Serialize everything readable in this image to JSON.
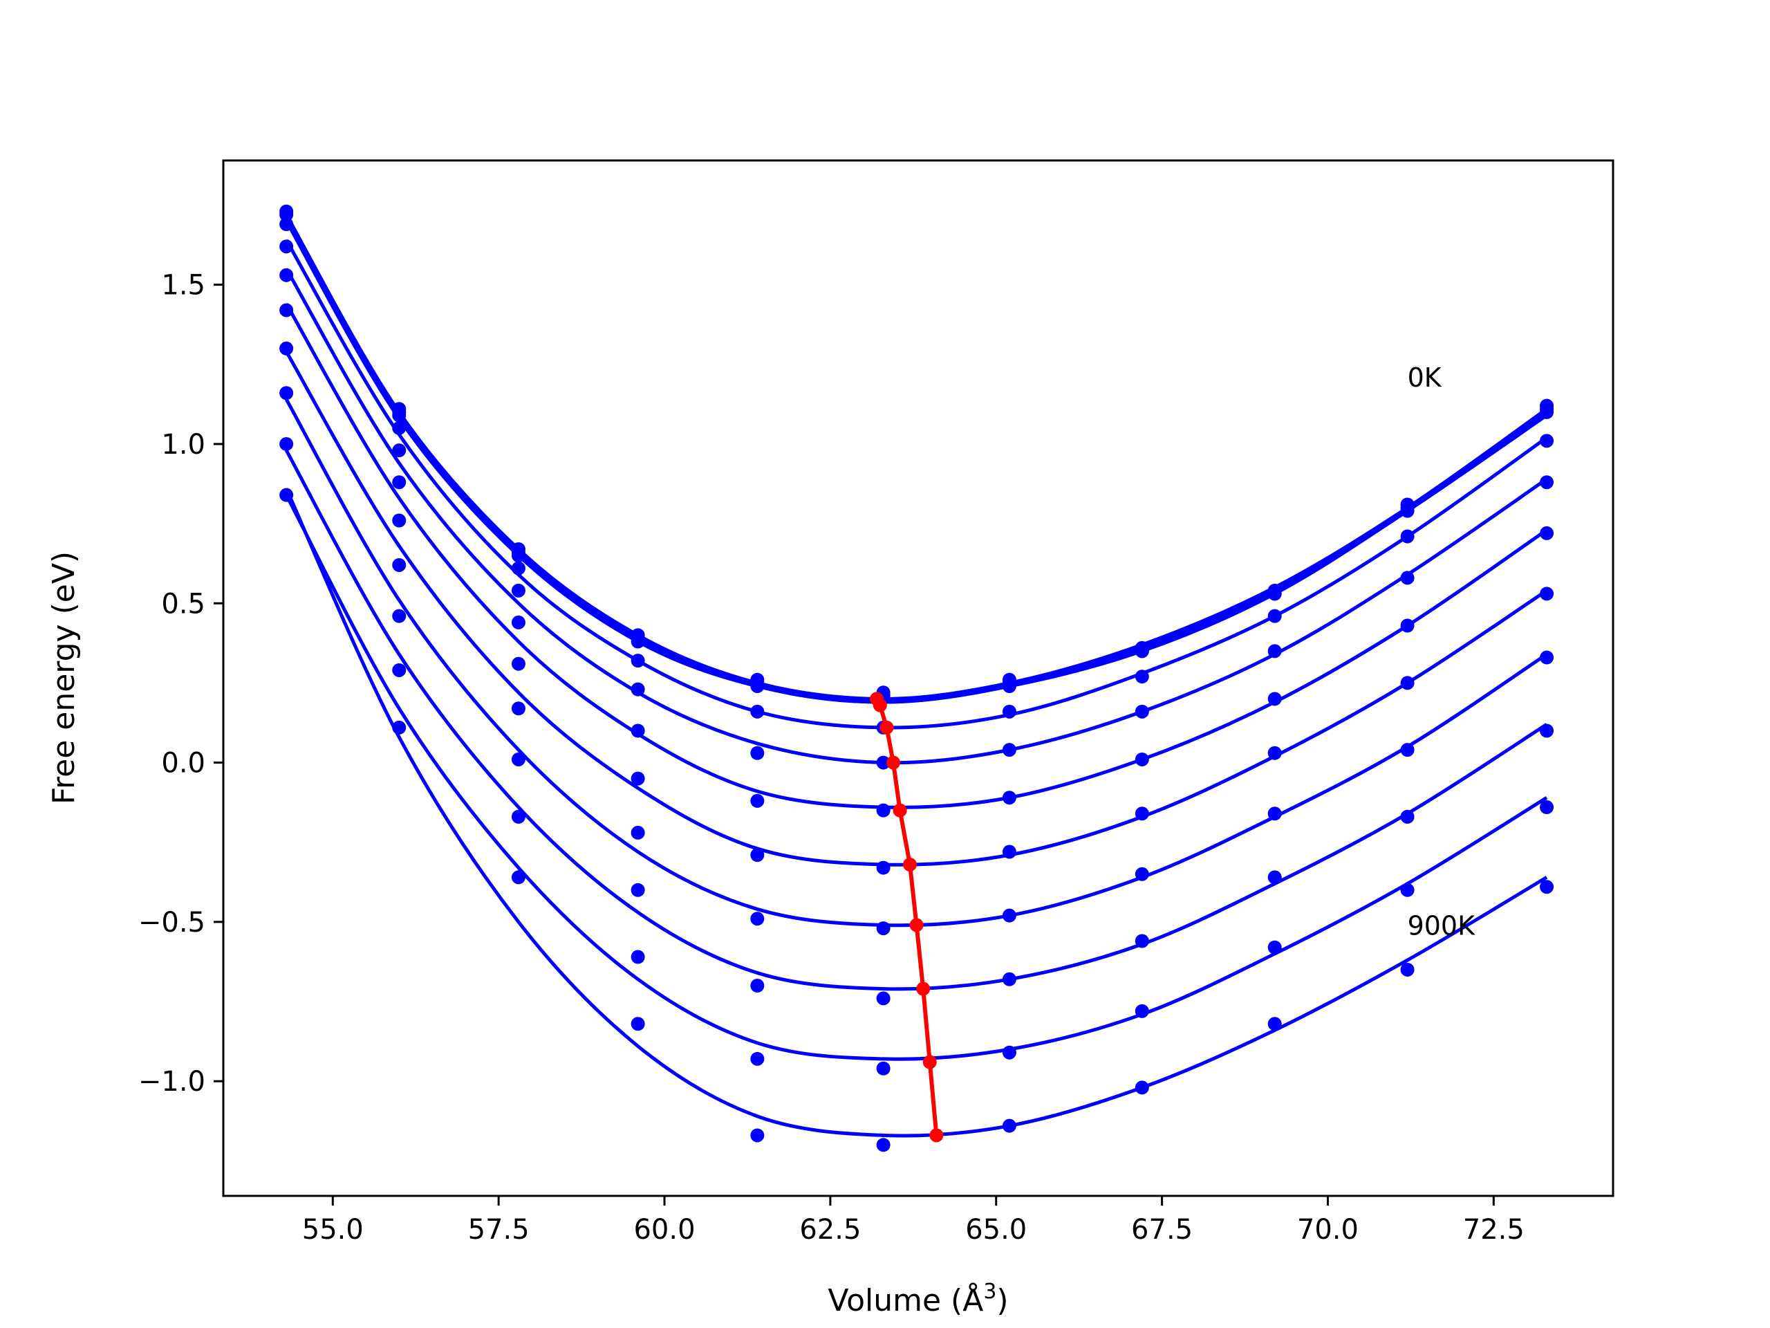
{
  "chart_data": {
    "type": "line",
    "title": "",
    "xlabel": "Volume (Å",
    "xlabel_sup": "3",
    "xlabel_close": ")",
    "ylabel": "Free energy (eV)",
    "xlim": [
      53.35,
      74.3
    ],
    "ylim": [
      -1.36,
      1.89
    ],
    "xticks": [
      55.0,
      57.5,
      60.0,
      62.5,
      65.0,
      67.5,
      70.0,
      72.5
    ],
    "xtick_labels": [
      "55.0",
      "57.5",
      "60.0",
      "62.5",
      "65.0",
      "67.5",
      "70.0",
      "72.5"
    ],
    "yticks": [
      -1.0,
      -0.5,
      0.0,
      0.5,
      1.0,
      1.5
    ],
    "ytick_labels": [
      "−1.0",
      "−0.5",
      "0.0",
      "0.5",
      "1.0",
      "1.5"
    ],
    "grid": false,
    "annotations": [
      {
        "text": "0K",
        "x": 71.2,
        "y": 1.18
      },
      {
        "text": "900K",
        "x": 71.2,
        "y": -0.54
      }
    ],
    "colors": {
      "curves": "#0000ff",
      "min_path": "#ff0000",
      "axes": "#000000"
    },
    "volumes": [
      54.3,
      56.0,
      57.8,
      59.6,
      61.4,
      63.3,
      65.2,
      67.2,
      69.2,
      71.2,
      73.3
    ],
    "series": [
      {
        "x": [
          54.3,
          56.0,
          57.8,
          59.6,
          61.4,
          63.3,
          65.2,
          67.2,
          69.2,
          71.2,
          73.3
        ],
        "y": [
          1.73,
          1.11,
          0.67,
          0.4,
          0.26,
          0.22,
          0.26,
          0.36,
          0.54,
          0.81,
          1.12
        ],
        "fit": {
          "x": [
            54.3,
            56.0,
            57.8,
            59.6,
            61.4,
            63.3,
            65.2,
            67.2,
            69.2,
            71.2,
            73.3
          ],
          "y": [
            1.72,
            1.1,
            0.67,
            0.4,
            0.25,
            0.2,
            0.25,
            0.37,
            0.55,
            0.8,
            1.11
          ]
        }
      },
      {
        "x": [
          54.3,
          56.0,
          57.8,
          59.6,
          61.4,
          63.3,
          65.2,
          67.2,
          69.2,
          71.2,
          73.3
        ],
        "y": [
          1.72,
          1.1,
          0.66,
          0.39,
          0.25,
          0.21,
          0.25,
          0.35,
          0.53,
          0.8,
          1.11
        ],
        "fit": {
          "x": [
            54.3,
            56.0,
            57.8,
            59.6,
            61.4,
            63.3,
            65.2,
            67.2,
            69.2,
            71.2,
            73.3
          ],
          "y": [
            1.71,
            1.09,
            0.66,
            0.39,
            0.24,
            0.19,
            0.24,
            0.36,
            0.54,
            0.79,
            1.1
          ]
        }
      },
      {
        "x": [
          54.3,
          56.0,
          57.8,
          59.6,
          61.4,
          63.3,
          65.2,
          67.2,
          69.2,
          71.2,
          73.3
        ],
        "y": [
          1.69,
          1.09,
          0.65,
          0.38,
          0.24,
          0.21,
          0.24,
          0.35,
          0.53,
          0.79,
          1.1
        ],
        "fit": {
          "x": [
            54.3,
            56.0,
            57.8,
            59.6,
            61.4,
            63.3,
            65.2,
            67.2,
            69.2,
            71.2,
            73.3
          ],
          "y": [
            1.7,
            1.08,
            0.65,
            0.38,
            0.24,
            0.19,
            0.24,
            0.35,
            0.53,
            0.79,
            1.09
          ]
        }
      },
      {
        "x": [
          54.3,
          56.0,
          57.8,
          59.6,
          61.4,
          63.3,
          65.2,
          67.2,
          69.2,
          71.2,
          73.3
        ],
        "y": [
          1.62,
          1.05,
          0.61,
          0.32,
          0.16,
          0.11,
          0.16,
          0.27,
          0.46,
          0.71,
          1.01
        ],
        "fit": {
          "x": [
            54.3,
            56.0,
            57.8,
            59.6,
            61.4,
            63.3,
            65.2,
            67.2,
            69.2,
            71.2,
            73.3
          ],
          "y": [
            1.64,
            1.03,
            0.59,
            0.32,
            0.16,
            0.11,
            0.15,
            0.28,
            0.46,
            0.71,
            1.02
          ]
        }
      },
      {
        "x": [
          54.3,
          56.0,
          57.8,
          59.6,
          61.4,
          63.3,
          65.2,
          67.2,
          69.2,
          71.2,
          73.3
        ],
        "y": [
          1.53,
          0.98,
          0.54,
          0.23,
          0.03,
          0.0,
          0.04,
          0.16,
          0.35,
          0.58,
          0.88
        ],
        "fit": {
          "x": [
            54.3,
            56.0,
            57.8,
            59.6,
            61.4,
            63.3,
            65.2,
            67.2,
            69.2,
            71.2,
            73.3
          ],
          "y": [
            1.55,
            0.94,
            0.5,
            0.22,
            0.06,
            0.0,
            0.04,
            0.16,
            0.34,
            0.59,
            0.89
          ]
        }
      },
      {
        "x": [
          54.3,
          56.0,
          57.8,
          59.6,
          61.4,
          63.3,
          65.2,
          67.2,
          69.2,
          71.2,
          73.3
        ],
        "y": [
          1.42,
          0.88,
          0.44,
          0.1,
          -0.12,
          -0.15,
          -0.11,
          0.01,
          0.2,
          0.43,
          0.72
        ],
        "fit": {
          "x": [
            54.3,
            56.0,
            57.8,
            59.6,
            61.4,
            63.3,
            65.2,
            67.2,
            69.2,
            71.2,
            73.3
          ],
          "y": [
            1.44,
            0.83,
            0.38,
            0.09,
            -0.09,
            -0.14,
            -0.11,
            0.01,
            0.19,
            0.43,
            0.73
          ]
        }
      },
      {
        "x": [
          54.3,
          56.0,
          57.8,
          59.6,
          61.4,
          63.3,
          65.2,
          67.2,
          69.2,
          71.2,
          73.3
        ],
        "y": [
          1.3,
          0.76,
          0.31,
          -0.05,
          -0.29,
          -0.33,
          -0.28,
          -0.16,
          0.03,
          0.25,
          0.53
        ],
        "fit": {
          "x": [
            54.3,
            56.0,
            57.8,
            59.6,
            61.4,
            63.3,
            65.2,
            67.2,
            69.2,
            71.2,
            73.3
          ],
          "y": [
            1.29,
            0.68,
            0.22,
            -0.08,
            -0.27,
            -0.32,
            -0.29,
            -0.17,
            0.02,
            0.25,
            0.54
          ]
        }
      },
      {
        "x": [
          54.3,
          56.0,
          57.8,
          59.6,
          61.4,
          63.3,
          65.2,
          67.2,
          69.2,
          71.2,
          73.3
        ],
        "y": [
          1.16,
          0.62,
          0.17,
          -0.22,
          -0.49,
          -0.52,
          -0.48,
          -0.35,
          -0.16,
          0.04,
          0.33
        ],
        "fit": {
          "x": [
            54.3,
            56.0,
            57.8,
            59.6,
            61.4,
            63.3,
            65.2,
            67.2,
            69.2,
            71.2,
            73.3
          ],
          "y": [
            1.14,
            0.51,
            0.04,
            -0.28,
            -0.46,
            -0.51,
            -0.48,
            -0.36,
            -0.17,
            0.05,
            0.34
          ]
        }
      },
      {
        "x": [
          54.3,
          56.0,
          57.8,
          59.6,
          61.4,
          63.3,
          65.2,
          67.2,
          69.2,
          71.2,
          73.3
        ],
        "y": [
          1.0,
          0.46,
          0.01,
          -0.4,
          -0.7,
          -0.74,
          -0.68,
          -0.56,
          -0.36,
          -0.17,
          0.1
        ],
        "fit": {
          "x": [
            54.3,
            56.0,
            57.8,
            59.6,
            61.4,
            63.3,
            65.2,
            67.2,
            69.2,
            71.2,
            73.3
          ],
          "y": [
            0.98,
            0.34,
            -0.14,
            -0.47,
            -0.66,
            -0.71,
            -0.68,
            -0.57,
            -0.38,
            -0.16,
            0.12
          ]
        }
      },
      {
        "x": [
          54.3,
          56.0,
          57.8,
          59.6,
          61.4,
          63.3,
          65.2,
          67.2,
          69.2,
          71.2,
          73.3
        ],
        "y": [
          0.84,
          0.29,
          -0.17,
          -0.61,
          -0.93,
          -0.96,
          -0.91,
          -0.78,
          -0.58,
          -0.4,
          -0.14
        ],
        "fit": {
          "x": [
            54.3,
            56.0,
            57.8,
            59.6,
            61.4,
            63.3,
            65.2,
            67.2,
            69.2,
            71.2,
            73.3
          ],
          "y": [
            0.84,
            0.17,
            -0.33,
            -0.68,
            -0.88,
            -0.93,
            -0.9,
            -0.79,
            -0.6,
            -0.38,
            -0.11
          ]
        }
      },
      {
        "x": [
          54.3,
          56.0,
          57.8,
          59.6,
          61.4,
          63.3,
          65.2,
          67.2,
          69.2,
          71.2,
          73.3
        ],
        "y": [
          null,
          0.11,
          -0.36,
          -0.82,
          -1.17,
          -1.2,
          -1.14,
          -1.02,
          -0.82,
          -0.65,
          -0.39
        ],
        "fit": {
          "x": [
            54.3,
            56.0,
            57.8,
            59.6,
            61.4,
            63.3,
            65.2,
            67.2,
            69.2,
            71.2,
            73.3
          ],
          "y": [
            0.86,
            0.08,
            -0.5,
            -0.89,
            -1.11,
            -1.17,
            -1.14,
            -1.02,
            -0.84,
            -0.62,
            -0.36
          ]
        }
      }
    ],
    "minimum_path": {
      "x": [
        63.2,
        63.25,
        63.35,
        63.45,
        63.55,
        63.7,
        63.8,
        63.9,
        64.0,
        64.1
      ],
      "y": [
        0.2,
        0.18,
        0.11,
        0.0,
        -0.15,
        -0.32,
        -0.51,
        -0.71,
        -0.94,
        -1.17
      ]
    }
  }
}
